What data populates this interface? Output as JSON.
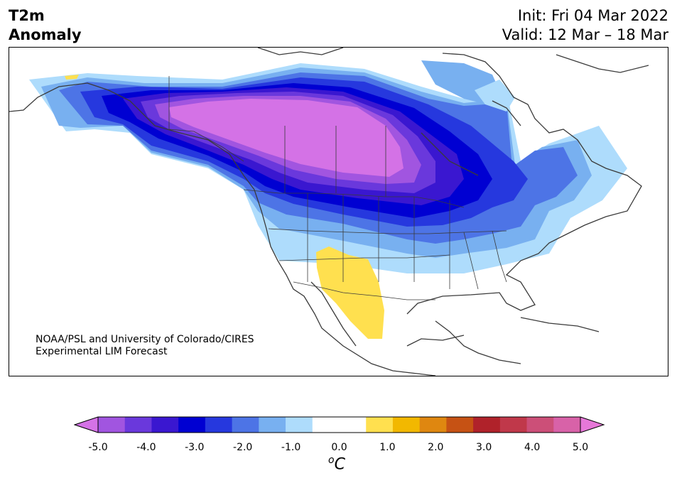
{
  "title": {
    "line1": "T2m",
    "line2": "Anomaly"
  },
  "forecast": {
    "init": "Init: Fri 04 Mar 2022",
    "valid": "Valid: 12 Mar – 18 Mar"
  },
  "credit": {
    "line1": "NOAA/PSL and University of Colorado/CIRES",
    "line2": "Experimental LIM Forecast"
  },
  "colorbar": {
    "unit_sup": "o",
    "unit": "C",
    "tick_labels": [
      "-5.0",
      "-4.0",
      "-3.0",
      "-2.0",
      "-1.0",
      "0.0",
      "1.0",
      "2.0",
      "3.0",
      "4.0",
      "5.0"
    ],
    "colors": [
      "#d472e6",
      "#a155e0",
      "#6a38dc",
      "#3a17d0",
      "#0000d2",
      "#2638de",
      "#4d74e6",
      "#78b0f0",
      "#aedcfc",
      "#ffffff",
      "#ffffff",
      "#ffe04f",
      "#f2b800",
      "#df8710",
      "#c65214",
      "#b0222a",
      "#c0384a",
      "#cc4f78",
      "#d862a8",
      "#e678d8"
    ]
  }
}
